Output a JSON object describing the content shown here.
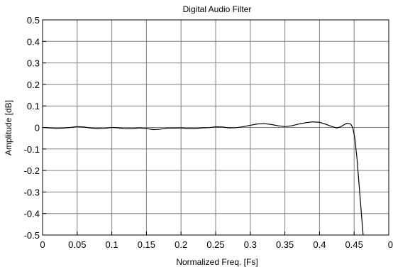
{
  "chart_data": {
    "type": "line",
    "title": "Digital Audio Filter",
    "xlabel": "Normalized Freq. [Fs]",
    "ylabel": "Amplitude [dB]",
    "xlim": [
      0,
      0.5
    ],
    "ylim": [
      -0.5,
      0.5
    ],
    "grid": true,
    "x_ticks": [
      "0",
      "0.05",
      "0.1",
      "0.15",
      "0.2",
      "0.25",
      "0.3",
      "0.35",
      "0.4",
      "0.45",
      "0"
    ],
    "y_ticks": [
      "0.5",
      "0.4",
      "0.3",
      "0.2",
      "0.1",
      "0",
      "-0.1",
      "-0.2",
      "-0.3",
      "-0.4",
      "-0.5"
    ],
    "series": [
      {
        "color": "#000000",
        "x": [
          0,
          0.01,
          0.02,
          0.03,
          0.04,
          0.05,
          0.06,
          0.07,
          0.08,
          0.09,
          0.1,
          0.11,
          0.12,
          0.13,
          0.14,
          0.15,
          0.16,
          0.17,
          0.18,
          0.19,
          0.2,
          0.21,
          0.22,
          0.23,
          0.24,
          0.25,
          0.26,
          0.27,
          0.28,
          0.29,
          0.3,
          0.31,
          0.32,
          0.33,
          0.34,
          0.35,
          0.36,
          0.37,
          0.38,
          0.39,
          0.4,
          0.41,
          0.42,
          0.425,
          0.43,
          0.435,
          0.44,
          0.445,
          0.448,
          0.451,
          0.454,
          0.457,
          0.46,
          0.463
        ],
        "y": [
          0.0,
          -0.002,
          -0.004,
          -0.003,
          0.0,
          0.004,
          0.002,
          -0.003,
          -0.005,
          -0.004,
          0.0,
          -0.002,
          -0.006,
          -0.005,
          -0.002,
          -0.005,
          -0.01,
          -0.008,
          -0.003,
          -0.003,
          -0.002,
          -0.005,
          -0.005,
          -0.002,
          -0.001,
          0.003,
          0.002,
          -0.002,
          -0.001,
          0.004,
          0.01,
          0.016,
          0.018,
          0.014,
          0.008,
          0.004,
          0.008,
          0.016,
          0.022,
          0.026,
          0.024,
          0.014,
          0.002,
          -0.002,
          0.002,
          0.012,
          0.02,
          0.016,
          0.0,
          -0.05,
          -0.14,
          -0.26,
          -0.38,
          -0.5
        ]
      }
    ]
  }
}
